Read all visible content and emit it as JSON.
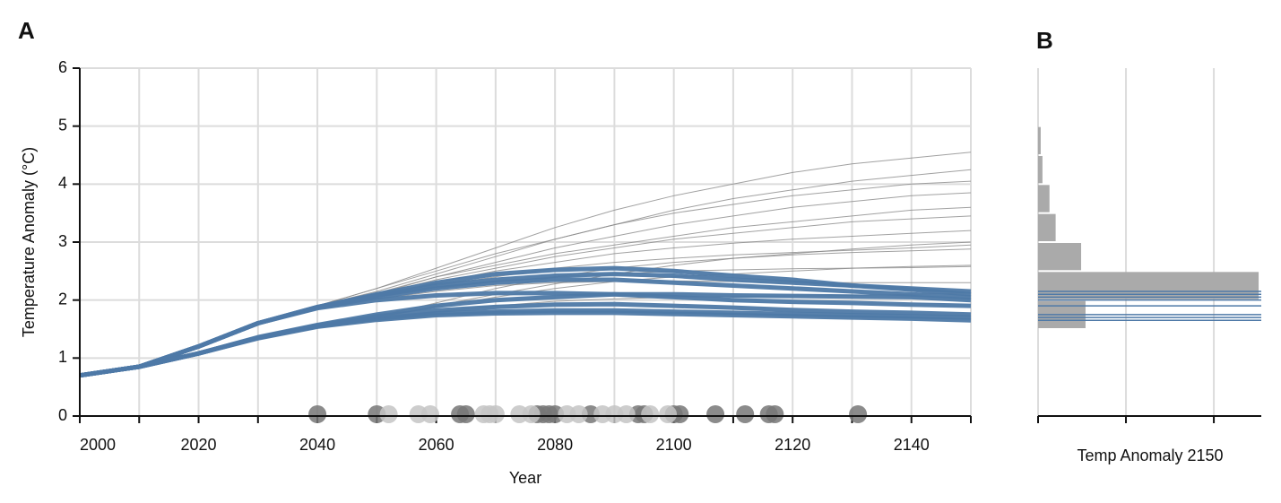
{
  "chart_data": [
    {
      "type": "line",
      "panel": "A",
      "xlabel": "Year",
      "ylabel": "Temperature Anomaly (°C)",
      "xlim": [
        2000,
        2150
      ],
      "ylim": [
        0,
        6
      ],
      "xticks": [
        2000,
        2020,
        2040,
        2060,
        2080,
        2100,
        2120,
        2140
      ],
      "xticks_minor": [
        2010,
        2030,
        2050,
        2070,
        2090,
        2110,
        2130,
        2150
      ],
      "yticks": [
        0,
        1,
        2,
        3,
        4,
        5,
        6
      ],
      "grid": true,
      "x": [
        2000,
        2010,
        2020,
        2030,
        2040,
        2050,
        2060,
        2070,
        2080,
        2090,
        2100,
        2110,
        2120,
        2130,
        2140,
        2150
      ],
      "series": [
        {
          "color": "#8a8a8a",
          "values": [
            0.7,
            0.85,
            1.2,
            1.6,
            1.9,
            2.2,
            2.55,
            2.9,
            3.25,
            3.55,
            3.8,
            4.0,
            4.2,
            4.35,
            4.45,
            4.55
          ]
        },
        {
          "color": "#8a8a8a",
          "values": [
            0.7,
            0.85,
            1.2,
            1.6,
            1.9,
            2.15,
            2.45,
            2.75,
            3.05,
            3.3,
            3.55,
            3.75,
            3.9,
            4.05,
            4.15,
            4.25
          ]
        },
        {
          "color": "#8a8a8a",
          "values": [
            0.7,
            0.85,
            1.2,
            1.6,
            1.9,
            2.1,
            2.4,
            2.65,
            2.9,
            3.1,
            3.3,
            3.45,
            3.6,
            3.7,
            3.8,
            3.85
          ]
        },
        {
          "color": "#8a8a8a",
          "values": [
            0.7,
            0.85,
            1.2,
            1.6,
            1.88,
            2.1,
            2.35,
            2.55,
            2.75,
            2.9,
            3.05,
            3.15,
            3.25,
            3.35,
            3.4,
            3.45
          ]
        },
        {
          "color": "#8a8a8a",
          "values": [
            0.7,
            0.85,
            1.2,
            1.6,
            1.88,
            2.08,
            2.3,
            2.5,
            2.65,
            2.8,
            2.9,
            2.98,
            3.05,
            3.1,
            3.15,
            3.2
          ]
        },
        {
          "color": "#8a8a8a",
          "values": [
            0.7,
            0.85,
            1.2,
            1.6,
            1.87,
            2.05,
            2.25,
            2.4,
            2.55,
            2.65,
            2.72,
            2.78,
            2.82,
            2.86,
            2.9,
            2.95
          ]
        },
        {
          "color": "#8a8a8a",
          "values": [
            0.7,
            0.85,
            1.08,
            1.35,
            1.55,
            1.72,
            1.95,
            2.2,
            2.4,
            2.55,
            2.65,
            2.72,
            2.78,
            2.82,
            2.85,
            2.88
          ]
        },
        {
          "color": "#8a8a8a",
          "values": [
            0.7,
            0.85,
            1.08,
            1.35,
            1.55,
            1.7,
            1.88,
            2.05,
            2.2,
            2.32,
            2.4,
            2.45,
            2.5,
            2.55,
            2.58,
            2.6
          ]
        },
        {
          "color": "#8a8a8a",
          "values": [
            0.7,
            0.85,
            1.2,
            1.6,
            1.87,
            2.05,
            2.2,
            2.32,
            2.4,
            2.45,
            2.5,
            2.52,
            2.54,
            2.55,
            2.56,
            2.58
          ]
        },
        {
          "color": "#8a8a8a",
          "values": [
            0.7,
            0.85,
            1.2,
            1.6,
            1.86,
            2.02,
            2.15,
            2.25,
            2.3,
            2.32,
            2.33,
            2.32,
            2.3,
            2.3,
            2.3,
            2.3
          ]
        },
        {
          "color": "#8a8a8a",
          "values": [
            0.7,
            0.85,
            1.08,
            1.35,
            1.55,
            1.68,
            1.8,
            1.9,
            1.98,
            2.02,
            2.05,
            2.06,
            2.07,
            2.08,
            2.1,
            2.12
          ]
        },
        {
          "color": "#8a8a8a",
          "values": [
            0.7,
            0.85,
            1.2,
            1.6,
            1.9,
            2.2,
            2.5,
            2.8,
            3.05,
            3.3,
            3.5,
            3.65,
            3.8,
            3.9,
            4.0,
            4.05
          ]
        },
        {
          "color": "#8a8a8a",
          "values": [
            0.7,
            0.85,
            1.2,
            1.6,
            1.88,
            2.12,
            2.4,
            2.6,
            2.8,
            2.95,
            3.1,
            3.25,
            3.35,
            3.45,
            3.55,
            3.6
          ]
        },
        {
          "color": "#8a8a8a",
          "values": [
            0.7,
            0.85,
            1.08,
            1.35,
            1.55,
            1.7,
            1.9,
            2.1,
            2.28,
            2.45,
            2.6,
            2.72,
            2.8,
            2.88,
            2.95,
            3.0
          ]
        },
        {
          "color": "#4e79a7",
          "highlight": true,
          "values": [
            0.7,
            0.85,
            1.2,
            1.6,
            1.88,
            2.1,
            2.3,
            2.45,
            2.52,
            2.55,
            2.5,
            2.42,
            2.35,
            2.25,
            2.18,
            2.1
          ]
        },
        {
          "color": "#4e79a7",
          "highlight": true,
          "values": [
            0.7,
            0.85,
            1.2,
            1.6,
            1.87,
            2.05,
            2.2,
            2.3,
            2.35,
            2.35,
            2.3,
            2.25,
            2.2,
            2.15,
            2.1,
            2.05
          ]
        },
        {
          "color": "#4e79a7",
          "highlight": true,
          "values": [
            0.7,
            0.85,
            1.2,
            1.6,
            1.88,
            2.08,
            2.25,
            2.35,
            2.42,
            2.45,
            2.42,
            2.35,
            2.3,
            2.25,
            2.2,
            2.15
          ]
        },
        {
          "color": "#4e79a7",
          "highlight": true,
          "values": [
            0.7,
            0.85,
            1.2,
            1.6,
            1.86,
            2.0,
            2.08,
            2.12,
            2.12,
            2.1,
            2.05,
            2.0,
            1.97,
            1.95,
            1.92,
            1.9
          ]
        },
        {
          "color": "#4e79a7",
          "highlight": true,
          "values": [
            0.7,
            0.85,
            1.08,
            1.35,
            1.55,
            1.68,
            1.77,
            1.8,
            1.82,
            1.82,
            1.8,
            1.78,
            1.76,
            1.74,
            1.72,
            1.7
          ]
        },
        {
          "color": "#4e79a7",
          "highlight": true,
          "values": [
            0.7,
            0.85,
            1.08,
            1.34,
            1.54,
            1.66,
            1.74,
            1.77,
            1.78,
            1.78,
            1.76,
            1.74,
            1.72,
            1.7,
            1.68,
            1.65
          ]
        },
        {
          "color": "#4e79a7",
          "highlight": true,
          "values": [
            0.7,
            0.85,
            1.08,
            1.36,
            1.57,
            1.75,
            1.9,
            2.0,
            2.05,
            2.1,
            2.1,
            2.08,
            2.07,
            2.06,
            2.05,
            2.0
          ]
        },
        {
          "color": "#4e79a7",
          "highlight": true,
          "values": [
            0.7,
            0.85,
            1.08,
            1.35,
            1.56,
            1.72,
            1.82,
            1.88,
            1.92,
            1.93,
            1.9,
            1.87,
            1.83,
            1.8,
            1.78,
            1.75
          ]
        }
      ],
      "dots": [
        {
          "color": "#777777",
          "x": [
            2040,
            2050,
            2064,
            2065,
            2077,
            2078,
            2079,
            2080,
            2086,
            2094,
            2095,
            2100,
            2101,
            2107,
            2112,
            2116,
            2117,
            2131
          ]
        },
        {
          "color": "#c4c4c4",
          "x": [
            2052,
            2057,
            2059,
            2068,
            2069,
            2070,
            2074,
            2076,
            2082,
            2084,
            2088,
            2090,
            2092,
            2096,
            2099
          ]
        }
      ]
    },
    {
      "type": "histogram",
      "panel": "B",
      "xlabel": "Temp Anomaly 2150",
      "orientation": "horizontal",
      "color": "#aaaaaa",
      "bins": [
        1.5,
        2.0,
        2.5,
        3.0,
        3.5,
        4.0,
        4.5,
        5.0
      ],
      "counts": [
        54,
        251,
        49,
        20,
        13,
        5,
        3
      ],
      "xlim": [
        0,
        254
      ],
      "xticks": [
        0,
        100,
        200
      ],
      "xtick_labels": false,
      "ylim": [
        0,
        6
      ],
      "grid": true
    }
  ]
}
